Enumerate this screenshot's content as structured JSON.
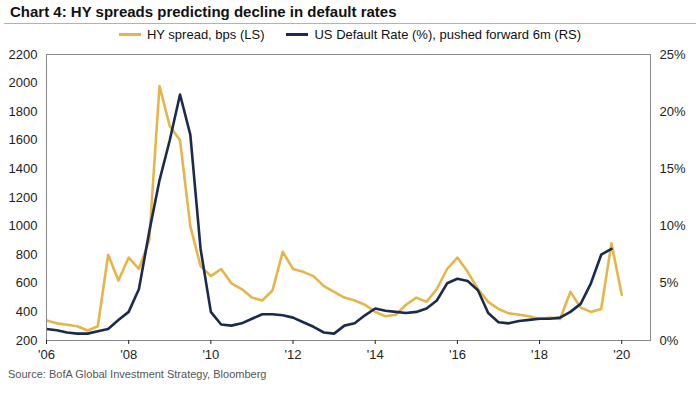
{
  "chart_data": {
    "type": "line",
    "title": "Chart 4: HY spreads predicting decline in default rates",
    "source": "Source: BofA Global Investment Strategy, Bloomberg",
    "x": [
      2006,
      2006.25,
      2006.5,
      2006.75,
      2007,
      2007.25,
      2007.5,
      2007.75,
      2008,
      2008.25,
      2008.5,
      2008.75,
      2009,
      2009.25,
      2009.5,
      2009.75,
      2010,
      2010.25,
      2010.5,
      2010.75,
      2011,
      2011.25,
      2011.5,
      2011.75,
      2012,
      2012.25,
      2012.5,
      2012.75,
      2013,
      2013.25,
      2013.5,
      2013.75,
      2014,
      2014.25,
      2014.5,
      2014.75,
      2015,
      2015.25,
      2015.5,
      2015.75,
      2016,
      2016.25,
      2016.5,
      2016.75,
      2017,
      2017.25,
      2017.5,
      2017.75,
      2018,
      2018.25,
      2018.5,
      2018.75,
      2019,
      2019.25,
      2019.5,
      2019.75,
      2020
    ],
    "series": [
      {
        "name": "HY spread, bps (LS)",
        "color": "#e6b54a",
        "axis": "y",
        "values": [
          340,
          320,
          310,
          300,
          270,
          300,
          800,
          620,
          780,
          700,
          900,
          1980,
          1700,
          1600,
          1000,
          720,
          650,
          700,
          600,
          560,
          500,
          480,
          550,
          820,
          700,
          680,
          650,
          580,
          540,
          500,
          480,
          450,
          400,
          370,
          380,
          450,
          500,
          470,
          560,
          700,
          780,
          680,
          560,
          470,
          420,
          390,
          380,
          370,
          350,
          360,
          350,
          540,
          430,
          400,
          420,
          880,
          520
        ]
      },
      {
        "name": "US Default Rate (%), pushed forward 6m (RS)",
        "color": "#1b2a4e",
        "axis": "y2",
        "values": [
          1.0,
          0.9,
          0.7,
          0.6,
          0.6,
          0.8,
          1.0,
          1.8,
          2.5,
          4.5,
          9.5,
          14,
          17.5,
          21.5,
          18,
          8,
          2.5,
          1.4,
          1.3,
          1.5,
          1.9,
          2.3,
          2.3,
          2.2,
          2.0,
          1.6,
          1.2,
          0.7,
          0.6,
          1.3,
          1.5,
          2.2,
          2.8,
          2.6,
          2.5,
          2.4,
          2.5,
          2.8,
          3.5,
          5.0,
          5.4,
          5.2,
          4.4,
          2.4,
          1.6,
          1.5,
          1.7,
          1.8,
          1.9,
          1.9,
          2.0,
          2.5,
          3.2,
          5.0,
          7.5,
          8.0,
          null
        ]
      }
    ],
    "xlim": [
      2006,
      2020.7
    ],
    "xticks": [
      {
        "value": 2006,
        "label": "'06"
      },
      {
        "value": 2008,
        "label": "'08"
      },
      {
        "value": 2010,
        "label": "'10"
      },
      {
        "value": 2012,
        "label": "'12"
      },
      {
        "value": 2014,
        "label": "'14"
      },
      {
        "value": 2016,
        "label": "'16"
      },
      {
        "value": 2018,
        "label": "'18"
      },
      {
        "value": 2020,
        "label": "'20"
      }
    ],
    "ylim": [
      200,
      2200
    ],
    "yticks": [
      200,
      400,
      600,
      800,
      1000,
      1200,
      1400,
      1600,
      1800,
      2000,
      2200
    ],
    "y2lim": [
      0,
      25
    ],
    "y2ticks": [
      {
        "value": 0,
        "label": "0%"
      },
      {
        "value": 5,
        "label": "5%"
      },
      {
        "value": 10,
        "label": "10%"
      },
      {
        "value": 15,
        "label": "15%"
      },
      {
        "value": 20,
        "label": "20%"
      },
      {
        "value": 25,
        "label": "25%"
      }
    ],
    "grid": false,
    "legend": "top"
  }
}
